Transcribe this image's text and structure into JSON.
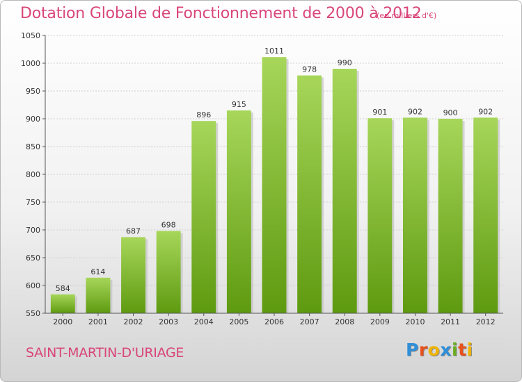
{
  "header": {
    "title": "Dotation Globale de Fonctionnement de 2000 à 2012",
    "subtitle": "(en milliers d'€)"
  },
  "footer": {
    "city": "SAINT-MARTIN-D'URIAGE",
    "brand": "Proxiti",
    "brand_colors": [
      "#2f8fd8",
      "#e8501c",
      "#f0b400",
      "#2f8fd8",
      "#6aac22",
      "#e8501c",
      "#f0b400"
    ]
  },
  "colors": {
    "title": "#d9467a",
    "bar_light": "#a7d65a",
    "bar_dark": "#5e9a10",
    "grid": "#d0d0d0"
  },
  "chart_data": {
    "type": "bar",
    "categories": [
      "2000",
      "2001",
      "2002",
      "2003",
      "2004",
      "2005",
      "2006",
      "2007",
      "2008",
      "2009",
      "2010",
      "2011",
      "2012"
    ],
    "values": [
      584,
      614,
      687,
      698,
      896,
      915,
      1011,
      978,
      990,
      901,
      902,
      900,
      902
    ],
    "ylim": [
      550,
      1050
    ],
    "yticks": [
      550,
      600,
      650,
      700,
      750,
      800,
      850,
      900,
      950,
      1000,
      1050
    ],
    "grid": true,
    "data_labels": true
  }
}
